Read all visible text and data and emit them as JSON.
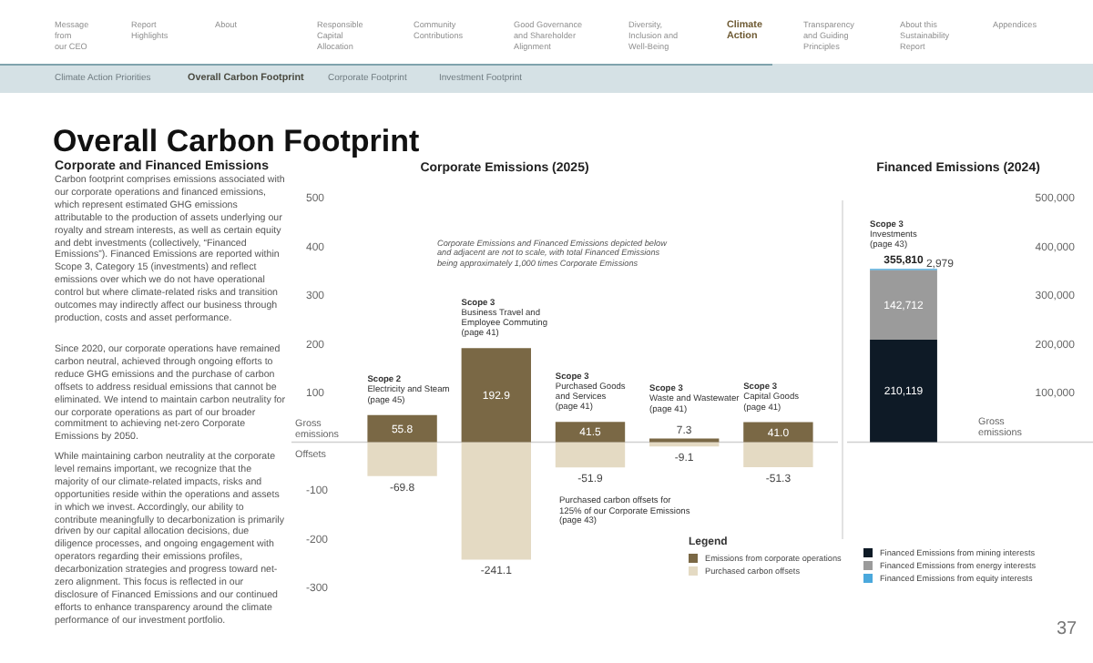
{
  "chart_data": [
    {
      "type": "bar",
      "title": "Corporate Emissions (2025)",
      "stacked": true,
      "categories": [
        "Scope 2\nElectricity and Steam\n(page 45)",
        "Scope 3\nBusiness Travel and\nEmployee Commuting\n(page 41)",
        "Scope 3\nPurchased Goods\nand Services\n(page 41)",
        "Scope 3\nWaste and Wastewater\n(page 41)",
        "Scope 3\nCapital Goods\n(page 41)"
      ],
      "series": [
        {
          "name": "Emissions from corporate operations",
          "color": "#7a6845",
          "values": [
            55.8,
            192.9,
            41.5,
            7.3,
            41.0
          ],
          "value_labels": [
            "55.8",
            "192.9",
            "41.5",
            "7.3",
            "41.0"
          ]
        },
        {
          "name": "Purchased carbon offsets",
          "color": "#e4dac3",
          "values": [
            -69.8,
            -241.1,
            -51.9,
            -9.1,
            -51.3
          ],
          "value_labels": [
            "-69.8",
            "-241.1",
            "-51.9",
            "-9.1",
            "-51.3"
          ]
        }
      ],
      "ylim": [
        -300,
        500
      ],
      "yticks": [
        -300,
        -200,
        -100,
        {
          "value": 0,
          "label": null
        },
        100,
        200,
        300,
        400,
        500
      ],
      "ref_lines": [
        {
          "axis": "y",
          "value": 0,
          "color": "#d0d0d0"
        }
      ],
      "legend": "bottom right",
      "legend_title": "Legend",
      "annotations": [
        "Message\nfrom\nour CEO",
        "Report\nHighlights",
        "About",
        "Responsible\nCapital\nAllocation",
        "Community\nContributions",
        "Good Governance\nand Shareholder\nAlignment",
        "Diversity,\nInclusion and\nWell-Being",
        "Climate\nAction",
        "Transparency\nand Guiding\nPrinciples",
        "About this\nSustainability\nReport",
        "Appendices",
        "Climate Action Priorities",
        "Overall Carbon Footprint",
        "Corporate Footprint",
        "Investment Footprint",
        "Overall Carbon Footprint",
        "Corporate and Financed Emissions",
        "Carbon footprint comprises emissions associated with our corporate operations and financed emissions, which represent estimated GHG emissions attributable to the production of assets underlying our royalty and stream interests, as well as certain equity and debt investments (collectively, “Financed Emissions”). Financed Emissions are reported within Scope 3, Category 15 (investments) and reflect emissions over which we do not have operational control but where climate-related risks and transition outcomes may indirectly affect our business through production, costs and asset performance.",
        "Since 2020, our corporate operations have remained carbon neutral, achieved through ongoing efforts to reduce GHG emissions and the purchase of carbon offsets to address residual emissions that cannot be eliminated. We intend to maintain carbon neutrality for our corporate operations as part of our broader commitment to achieving net-zero Corporate Emissions by 2050.",
        "While maintaining carbon neutrality at the corporate level remains important, we recognize that the majority of our climate-related impacts, risks and opportunities reside within the operations and assets in which we invest. Accordingly, our ability to contribute meaningfully to decarbonization is primarily driven by our capital allocation decisions, due diligence processes, and ongoing engagement with operators regarding their emissions profiles, decarbonization strategies and progress toward net-zero alignment. This focus is reflected in our disclosure of Financed Emissions and our continued efforts to enhance transparency around the climate performance of our investment portfolio.",
        "Corporate Emissions and Financed Emissions depicted below\nand adjacent are not to scale, with total Financed Emissions\nbeing approximately 1,000 times Corporate Emissions",
        "Purchased carbon offsets for\n125% of our Corporate Emissions\n(page 43)",
        "Gross\nemissions",
        "Offsets",
        "37"
      ]
    },
    {
      "type": "bar",
      "title": "Financed Emissions (2024)",
      "stacked": true,
      "categories": [
        "Scope 3\nInvestments\n(page 43)"
      ],
      "series": [
        {
          "name": "Financed Emissions from mining interests",
          "color": "#0e1a26",
          "values": [
            210119
          ],
          "value_labels": [
            "210,119"
          ]
        },
        {
          "name": "Financed Emissions from energy interests",
          "color": "#9b9b9b",
          "values": [
            142712
          ],
          "value_labels": [
            "142,712"
          ]
        },
        {
          "name": "Financed Emissions from equity interests",
          "color": "#4aa8dc",
          "values": [
            2979
          ],
          "value_labels": [
            "2,979"
          ]
        }
      ],
      "totals": [
        "355,810"
      ],
      "ylim": [
        -300000,
        500000
      ],
      "yticks": [
        {
          "value": 100000,
          "label": "100,000"
        },
        {
          "value": 200000,
          "label": "200,000"
        },
        {
          "value": 300000,
          "label": "300,000"
        },
        {
          "value": 400000,
          "label": "400,000"
        },
        {
          "value": 500000,
          "label": "500,000"
        }
      ],
      "ref_lines": [
        {
          "axis": "y",
          "value": 0,
          "color": "#d0d0d0"
        }
      ],
      "legend": "bottom",
      "annotations": [
        "Gross\nemissions"
      ]
    }
  ]
}
